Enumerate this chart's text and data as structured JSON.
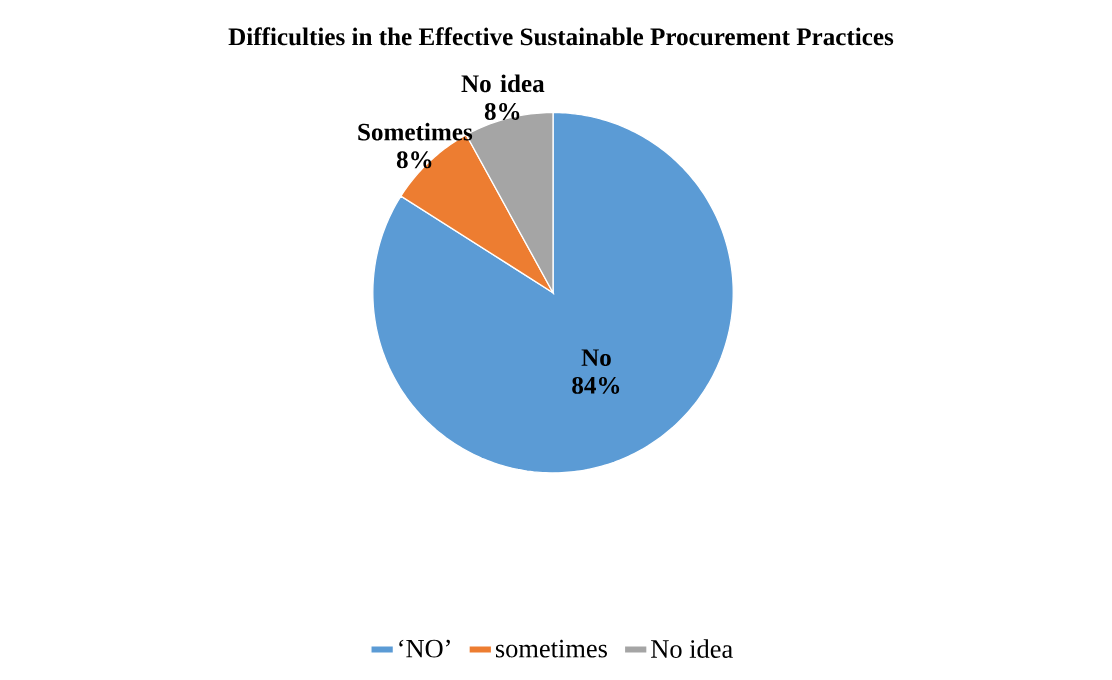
{
  "chart_data": {
    "type": "pie",
    "title": "Difficulties in the Effective Sustainable Procurement Practices",
    "categories": [
      "‘NO’",
      "sometimes",
      "No idea"
    ],
    "values": [
      84,
      8,
      8
    ],
    "colors": [
      "#5b9bd5",
      "#ed7d31",
      "#a5a5a5"
    ],
    "value_labels": [
      "No 84%",
      "Sometimes 8%",
      "No idea 8%"
    ],
    "legend": "bottom"
  }
}
